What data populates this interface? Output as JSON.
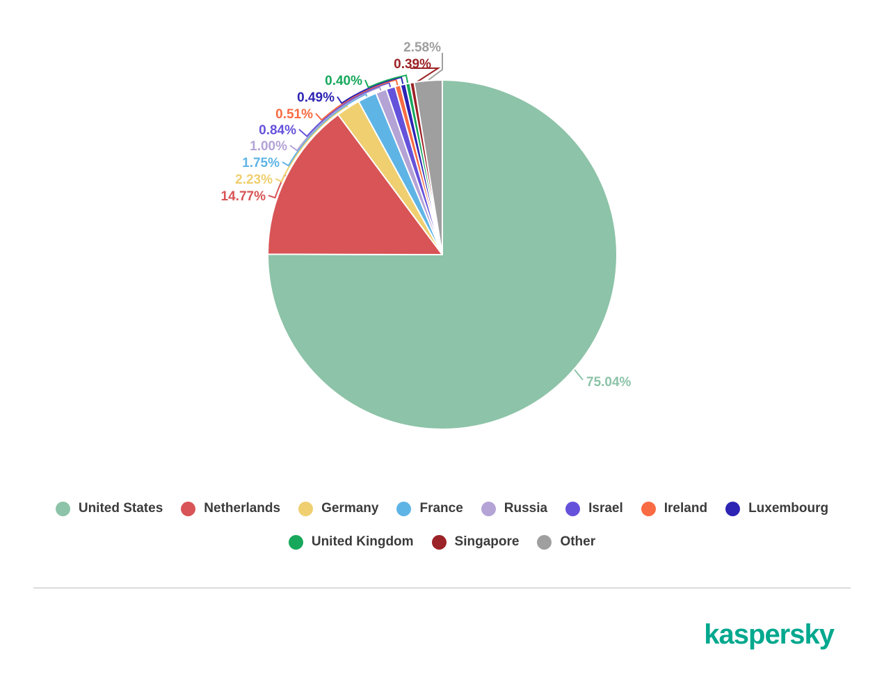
{
  "chart_data": {
    "type": "pie",
    "title": "",
    "unit": "%",
    "legend_position": "bottom",
    "categories": [
      "United States",
      "Netherlands",
      "Germany",
      "France",
      "Russia",
      "Israel",
      "Ireland",
      "Luxembourg",
      "United Kingdom",
      "Singapore",
      "Other"
    ],
    "values": [
      75.04,
      14.77,
      2.23,
      1.75,
      1.0,
      0.84,
      0.51,
      0.49,
      0.4,
      0.39,
      2.58
    ],
    "display_labels": [
      "75.04%",
      "14.77%",
      "2.23%",
      "1.75%",
      "1.00%",
      "0.84%",
      "0.51%",
      "0.49%",
      "0.40%",
      "0.39%",
      "2.58%"
    ],
    "colors": [
      "#8DC3A8",
      "#D85456",
      "#EFCF6F",
      "#5FB4E6",
      "#B4A3D5",
      "#6552DB",
      "#F96B42",
      "#2D24B4",
      "#17A85B",
      "#9B2226",
      "#9F9FA0"
    ]
  },
  "legend": {
    "text_color": "#3B3B3B"
  },
  "branding": {
    "logo_text": "kaspersky",
    "color": "#00A88E"
  }
}
